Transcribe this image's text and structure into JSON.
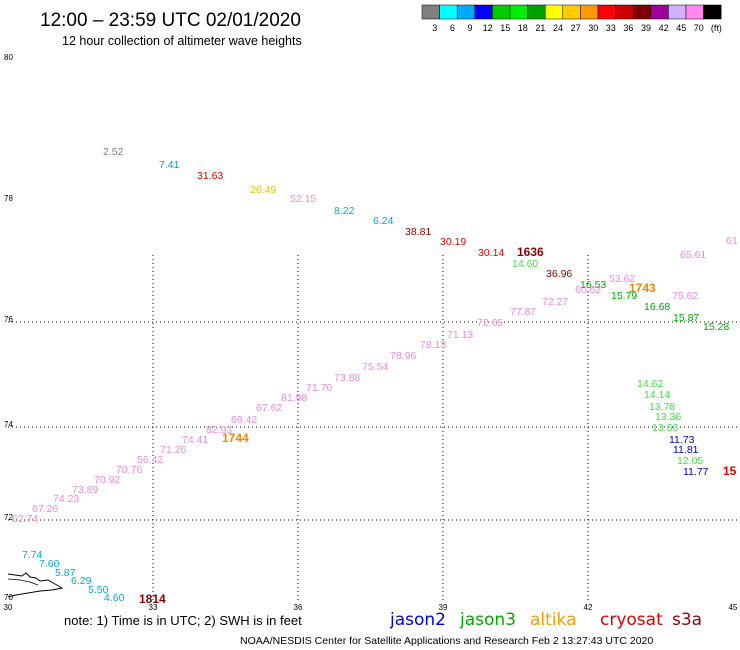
{
  "header": {
    "title": "12:00 – 23:59 UTC 02/01/2020",
    "subtitle": "12 hour collection of altimeter wave heights"
  },
  "legend": {
    "colors": [
      "#808080",
      "#00ffff",
      "#00aaff",
      "#0000ff",
      "#00cc00",
      "#00ee00",
      "#00a000",
      "#ffff00",
      "#ffcc00",
      "#ff9900",
      "#ff0000",
      "#cc0000",
      "#800000",
      "#a000a0",
      "#d0b0ff",
      "#ff88ee",
      "#000000"
    ],
    "labels": [
      "3",
      "6",
      "9",
      "12",
      "15",
      "18",
      "21",
      "24",
      "27",
      "30",
      "33",
      "36",
      "39",
      "42",
      "45",
      "70",
      "(ft)"
    ]
  },
  "axes": {
    "lat_labels": [
      "80",
      "78",
      "76",
      "74",
      "72",
      "70"
    ],
    "lon_labels": [
      "30",
      "33",
      "36",
      "39",
      "42",
      "45"
    ]
  },
  "observations": [
    {
      "t": "2.52",
      "c": "#808080"
    },
    {
      "t": "7.41",
      "c": "#00a0c0"
    },
    {
      "t": "31.63",
      "c": "#dd0000"
    },
    {
      "t": "26.49",
      "c": "#e8c000"
    },
    {
      "t": "52.15",
      "c": "#ee88dd"
    },
    {
      "t": "8.22",
      "c": "#00aadd"
    },
    {
      "t": "6.24",
      "c": "#00aadd"
    },
    {
      "t": "38.81",
      "c": "#990000"
    },
    {
      "t": "30.19",
      "c": "#dd0000"
    },
    {
      "t": "30.14",
      "c": "#dd0000"
    },
    {
      "t": "1636",
      "c": "#880000"
    },
    {
      "t": "14.60",
      "c": "#44dd44"
    },
    {
      "t": "36.96",
      "c": "#880000"
    },
    {
      "t": "16.53",
      "c": "#00aa00"
    },
    {
      "t": "53.62",
      "c": "#ee88dd"
    },
    {
      "t": "1743",
      "c": "#ee8800"
    },
    {
      "t": "75.62",
      "c": "#ee88dd"
    },
    {
      "t": "65.61",
      "c": "#ee88dd"
    },
    {
      "t": "61",
      "c": "#ee88dd"
    },
    {
      "t": "60.62",
      "c": "#ee88dd"
    },
    {
      "t": "15.79",
      "c": "#00aa00"
    },
    {
      "t": "72.27",
      "c": "#ee88dd"
    },
    {
      "t": "16.68",
      "c": "#00aa00"
    },
    {
      "t": "77.87",
      "c": "#ee88dd"
    },
    {
      "t": "15.87",
      "c": "#00aa00"
    },
    {
      "t": "72.65",
      "c": "#ee88dd"
    },
    {
      "t": "15.28",
      "c": "#00aa00"
    },
    {
      "t": "71.13",
      "c": "#ee88dd"
    },
    {
      "t": "78.13",
      "c": "#ee88dd"
    },
    {
      "t": "78.96",
      "c": "#ee88dd"
    },
    {
      "t": "75.54",
      "c": "#ee88dd"
    },
    {
      "t": "73.88",
      "c": "#ee88dd"
    },
    {
      "t": "71.70",
      "c": "#ee88dd"
    },
    {
      "t": "81.98",
      "c": "#ee88dd"
    },
    {
      "t": "67.62",
      "c": "#ee88dd"
    },
    {
      "t": "69.42",
      "c": "#ee88dd"
    },
    {
      "t": "82.93",
      "c": "#ee88dd"
    },
    {
      "t": "1744",
      "c": "#ee8800"
    },
    {
      "t": "74.41",
      "c": "#ee88dd"
    },
    {
      "t": "71.26",
      "c": "#ee88dd"
    },
    {
      "t": "56.42",
      "c": "#ee88dd"
    },
    {
      "t": "70.76",
      "c": "#ee88dd"
    },
    {
      "t": "70.92",
      "c": "#ee88dd"
    },
    {
      "t": "73.89",
      "c": "#ee88dd"
    },
    {
      "t": "74.23",
      "c": "#ee88dd"
    },
    {
      "t": "67.26",
      "c": "#ee88dd"
    },
    {
      "t": "62.74",
      "c": "#ee88dd"
    },
    {
      "t": "14.62",
      "c": "#44dd44"
    },
    {
      "t": "14.14",
      "c": "#44dd44"
    },
    {
      "t": "13.78",
      "c": "#44dd44"
    },
    {
      "t": "13.36",
      "c": "#44dd44"
    },
    {
      "t": "13.66",
      "c": "#44dd44"
    },
    {
      "t": "11.73",
      "c": "#0000cc"
    },
    {
      "t": "11.81",
      "c": "#0000cc"
    },
    {
      "t": "12.05",
      "c": "#44dd44"
    },
    {
      "t": "11.77",
      "c": "#0000cc"
    },
    {
      "t": "15",
      "c": "#dd0000"
    },
    {
      "t": "7.74",
      "c": "#00aadd"
    },
    {
      "t": "7.60",
      "c": "#00aadd"
    },
    {
      "t": "5.87",
      "c": "#00aadd"
    },
    {
      "t": "6.29",
      "c": "#00aadd"
    },
    {
      "t": "5.50",
      "c": "#00aadd"
    },
    {
      "t": "4.60",
      "c": "#00aadd"
    },
    {
      "t": "1814",
      "c": "#880000"
    }
  ],
  "footer": {
    "note": "note: 1) Time is in UTC; 2) SWH is in feet",
    "missions": [
      {
        "name": "jason2",
        "color": "#0000dd"
      },
      {
        "name": "jason3",
        "color": "#00aa00"
      },
      {
        "name": "altika",
        "color": "#ff9900"
      },
      {
        "name": "cryosat",
        "color": "#dd0000"
      },
      {
        "name": "s3a",
        "color": "#990000"
      }
    ],
    "credit": "NOAA/NESDIS Center for Satellite Applications and Research   Feb  2 13:27:43 UTC 2020"
  }
}
